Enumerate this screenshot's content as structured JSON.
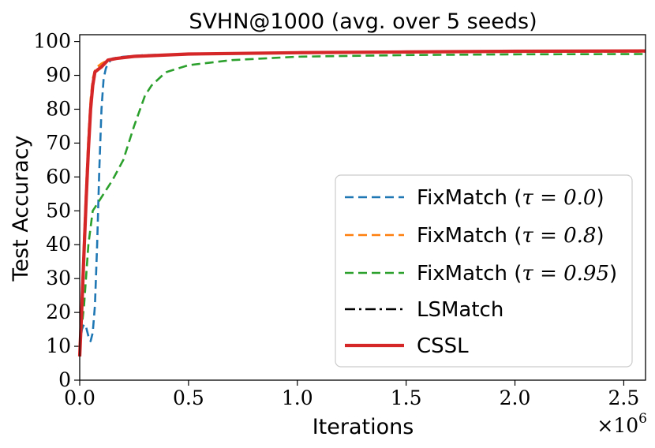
{
  "chart_data": {
    "type": "line",
    "title": "SVHN@1000 (avg. over 5 seeds)",
    "xlabel": "Iterations",
    "ylabel": "Test Accuracy",
    "x_multiplier": "×10",
    "x_multiplier_exp": "6",
    "xlim": [
      0,
      2.6
    ],
    "ylim": [
      0,
      102
    ],
    "xticks": [
      0.0,
      0.5,
      1.0,
      1.5,
      2.0,
      2.5
    ],
    "xtick_labels": [
      "0.0",
      "0.5",
      "1.0",
      "1.5",
      "2.0",
      "2.5"
    ],
    "yticks": [
      0,
      10,
      20,
      30,
      40,
      50,
      60,
      70,
      80,
      90,
      100
    ],
    "ytick_labels": [
      "0",
      "10",
      "20",
      "30",
      "40",
      "50",
      "60",
      "70",
      "80",
      "90",
      "100"
    ],
    "legend_position": "lower-right",
    "series": [
      {
        "name": "FixMatch (τ = 0.0)",
        "color": "#1f77b4",
        "dash": "dashed",
        "x": [
          0.0,
          0.01,
          0.02,
          0.03,
          0.04,
          0.05,
          0.06,
          0.07,
          0.08,
          0.09,
          0.1,
          0.11,
          0.12,
          0.13,
          0.15,
          0.2,
          0.3,
          0.5,
          1.0,
          1.5,
          2.0,
          2.6
        ],
        "y": [
          10,
          15,
          16.5,
          15.5,
          13,
          11.5,
          14,
          22,
          40,
          62,
          80,
          89,
          92,
          93.5,
          95,
          95.5,
          96,
          96.2,
          96.6,
          96.8,
          97,
          97
        ]
      },
      {
        "name": "FixMatch (τ = 0.8)",
        "color": "#ff7f0e",
        "dash": "dashed",
        "x": [
          0.0,
          0.01,
          0.02,
          0.03,
          0.04,
          0.05,
          0.06,
          0.07,
          0.08,
          0.1,
          0.13,
          0.17,
          0.25,
          0.5,
          1.0,
          1.5,
          2.0,
          2.6
        ],
        "y": [
          10,
          25,
          42,
          58,
          72,
          83,
          89,
          91.5,
          92.5,
          93.5,
          94.5,
          95,
          95.6,
          96.2,
          96.6,
          96.8,
          97,
          97
        ]
      },
      {
        "name": "FixMatch (τ = 0.95)",
        "color": "#2ca02c",
        "dash": "dashed",
        "x": [
          0.0,
          0.02,
          0.04,
          0.06,
          0.08,
          0.1,
          0.15,
          0.2,
          0.25,
          0.3,
          0.33,
          0.38,
          0.4,
          0.5,
          0.7,
          1.0,
          1.5,
          2.0,
          2.6
        ],
        "y": [
          10,
          22,
          40,
          50,
          52,
          54,
          59,
          65,
          75,
          84,
          87,
          90,
          91,
          93,
          94.5,
          95.5,
          96,
          96.2,
          96.3
        ]
      },
      {
        "name": "LSMatch",
        "color": "#000000",
        "dash": "dashdot",
        "x": [
          0.0,
          0.01,
          0.02,
          0.03,
          0.04,
          0.05,
          0.06,
          0.07,
          0.1,
          0.13,
          0.17,
          0.25,
          0.5,
          1.0,
          1.5,
          2.0,
          2.6
        ],
        "y": [
          7,
          22,
          38,
          54,
          68,
          80,
          87,
          91,
          92.5,
          94.5,
          95,
          95.6,
          96.3,
          96.7,
          96.9,
          97.1,
          97.2
        ]
      },
      {
        "name": "CSSL",
        "color": "#d62728",
        "dash": "solid",
        "x": [
          0.0,
          0.01,
          0.02,
          0.03,
          0.04,
          0.05,
          0.06,
          0.07,
          0.1,
          0.13,
          0.17,
          0.25,
          0.5,
          1.0,
          1.5,
          2.0,
          2.6
        ],
        "y": [
          7,
          22,
          38,
          54,
          68,
          80,
          87,
          91,
          92.5,
          94.5,
          95,
          95.6,
          96.3,
          96.7,
          96.9,
          97.1,
          97.2
        ]
      }
    ],
    "legend": [
      {
        "label_prefix": "FixMatch (",
        "label_math": "τ = 0.0",
        "label_suffix": ")"
      },
      {
        "label_prefix": "FixMatch (",
        "label_math": "τ = 0.8",
        "label_suffix": ")"
      },
      {
        "label_prefix": "FixMatch (",
        "label_math": "τ = 0.95",
        "label_suffix": ")"
      },
      {
        "label_prefix": "LSMatch",
        "label_math": "",
        "label_suffix": ""
      },
      {
        "label_prefix": "CSSL",
        "label_math": "",
        "label_suffix": ""
      }
    ]
  }
}
